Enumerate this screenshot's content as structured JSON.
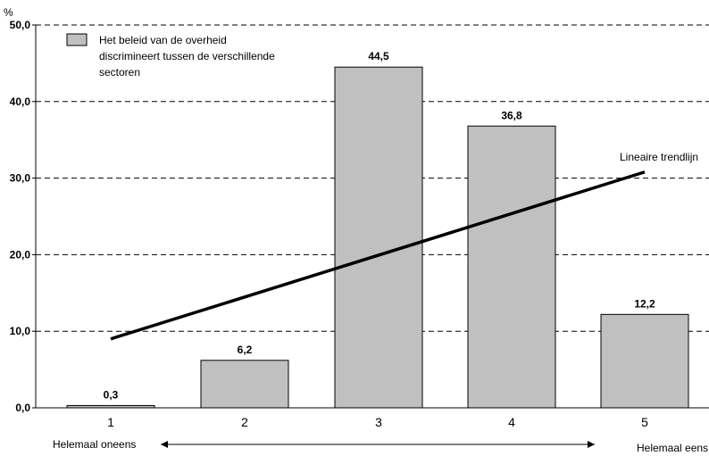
{
  "chart_data": {
    "type": "bar",
    "categories": [
      "1",
      "2",
      "3",
      "4",
      "5"
    ],
    "series": [
      {
        "name": "Het  beleid van de overheid discrimineert tussen de verschillende sectoren",
        "values": [
          0.3,
          6.2,
          44.5,
          36.8,
          12.2
        ]
      }
    ],
    "data_labels": [
      "0,3",
      "6,2",
      "44,5",
      "36,8",
      "12,2"
    ],
    "yunit": "%",
    "ylim": [
      0,
      50
    ],
    "yticks": [
      0,
      10,
      20,
      30,
      40,
      50
    ],
    "ytick_labels": [
      "0,0",
      "10,0",
      "20,0",
      "30,0",
      "40,0",
      "50,0"
    ],
    "grid": "dashed horizontal",
    "bar_color": "#c0c0c0",
    "legend": {
      "position": "top-left",
      "lines": [
        "Het  beleid van de overheid",
        "discrimineert tussen de verschillende",
        "sectoren"
      ]
    },
    "trendline": {
      "label": "Lineaire trendlijn",
      "start": [
        1,
        9.0
      ],
      "end": [
        5,
        30.8
      ]
    },
    "scale_ends": {
      "left": "Helemaal oneens",
      "right": "Helemaal eens"
    }
  }
}
